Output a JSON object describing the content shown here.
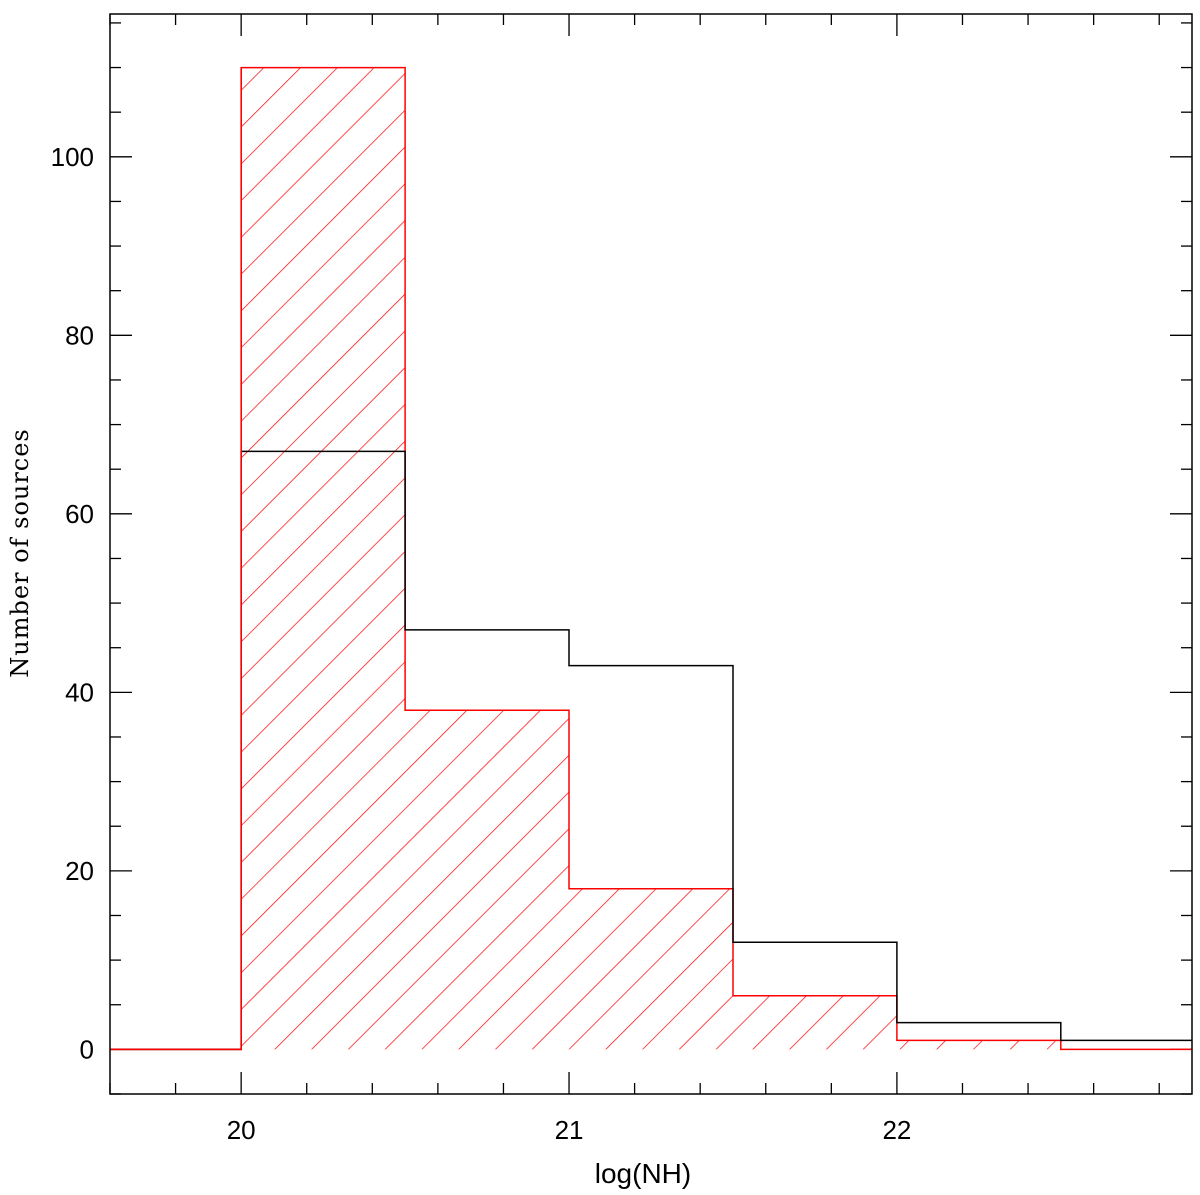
{
  "chart_data": {
    "type": "bar",
    "subtype": "step-histogram",
    "xlabel": "log(NH)",
    "ylabel": "Number of  sources",
    "xlim": [
      19.6,
      22.9
    ],
    "ylim": [
      -5,
      116
    ],
    "x_ticks": [
      20,
      21,
      22
    ],
    "x_tick_labels": [
      "20",
      "21",
      "22"
    ],
    "y_ticks": [
      0,
      20,
      40,
      60,
      80,
      100
    ],
    "y_tick_labels": [
      "0",
      "20",
      "40",
      "60",
      "80",
      "100"
    ],
    "x_minor_step": 0.2,
    "y_minor_step": 5,
    "grid": false,
    "bin_edges": [
      20.0,
      20.5,
      21.0,
      21.5,
      22.0,
      22.5
    ],
    "series": [
      {
        "color": "#000000",
        "style": "step-outline",
        "values": [
          67,
          47,
          43,
          12,
          3,
          1
        ]
      },
      {
        "color": "#ff0000",
        "style": "step-hatched",
        "values": [
          110,
          38,
          18,
          6,
          1,
          0
        ]
      }
    ]
  }
}
